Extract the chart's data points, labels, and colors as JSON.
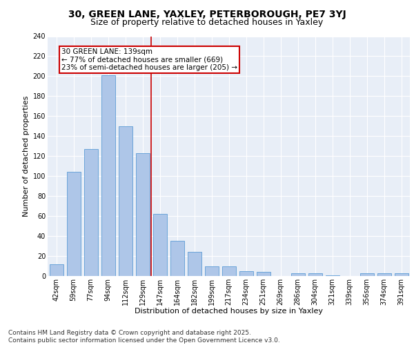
{
  "title_line1": "30, GREEN LANE, YAXLEY, PETERBOROUGH, PE7 3YJ",
  "title_line2": "Size of property relative to detached houses in Yaxley",
  "xlabel": "Distribution of detached houses by size in Yaxley",
  "ylabel": "Number of detached properties",
  "categories": [
    "42sqm",
    "59sqm",
    "77sqm",
    "94sqm",
    "112sqm",
    "129sqm",
    "147sqm",
    "164sqm",
    "182sqm",
    "199sqm",
    "217sqm",
    "234sqm",
    "251sqm",
    "269sqm",
    "286sqm",
    "304sqm",
    "321sqm",
    "339sqm",
    "356sqm",
    "374sqm",
    "391sqm"
  ],
  "values": [
    12,
    104,
    127,
    201,
    150,
    123,
    62,
    35,
    24,
    10,
    10,
    5,
    4,
    0,
    3,
    3,
    1,
    0,
    3,
    3,
    3
  ],
  "bar_color": "#aec6e8",
  "bar_edge_color": "#5b9bd5",
  "bar_width": 0.8,
  "vline_x": 5.5,
  "vline_color": "#cc0000",
  "annotation_text": "30 GREEN LANE: 139sqm\n← 77% of detached houses are smaller (669)\n23% of semi-detached houses are larger (205) →",
  "annotation_box_color": "#ffffff",
  "annotation_box_edge_color": "#cc0000",
  "ylim": [
    0,
    240
  ],
  "yticks": [
    0,
    20,
    40,
    60,
    80,
    100,
    120,
    140,
    160,
    180,
    200,
    220,
    240
  ],
  "background_color": "#e8eef7",
  "grid_color": "#ffffff",
  "footer_text": "Contains HM Land Registry data © Crown copyright and database right 2025.\nContains public sector information licensed under the Open Government Licence v3.0.",
  "title_fontsize": 10,
  "subtitle_fontsize": 9,
  "xlabel_fontsize": 8,
  "ylabel_fontsize": 8,
  "tick_fontsize": 7,
  "annotation_fontsize": 7.5,
  "footer_fontsize": 6.5
}
